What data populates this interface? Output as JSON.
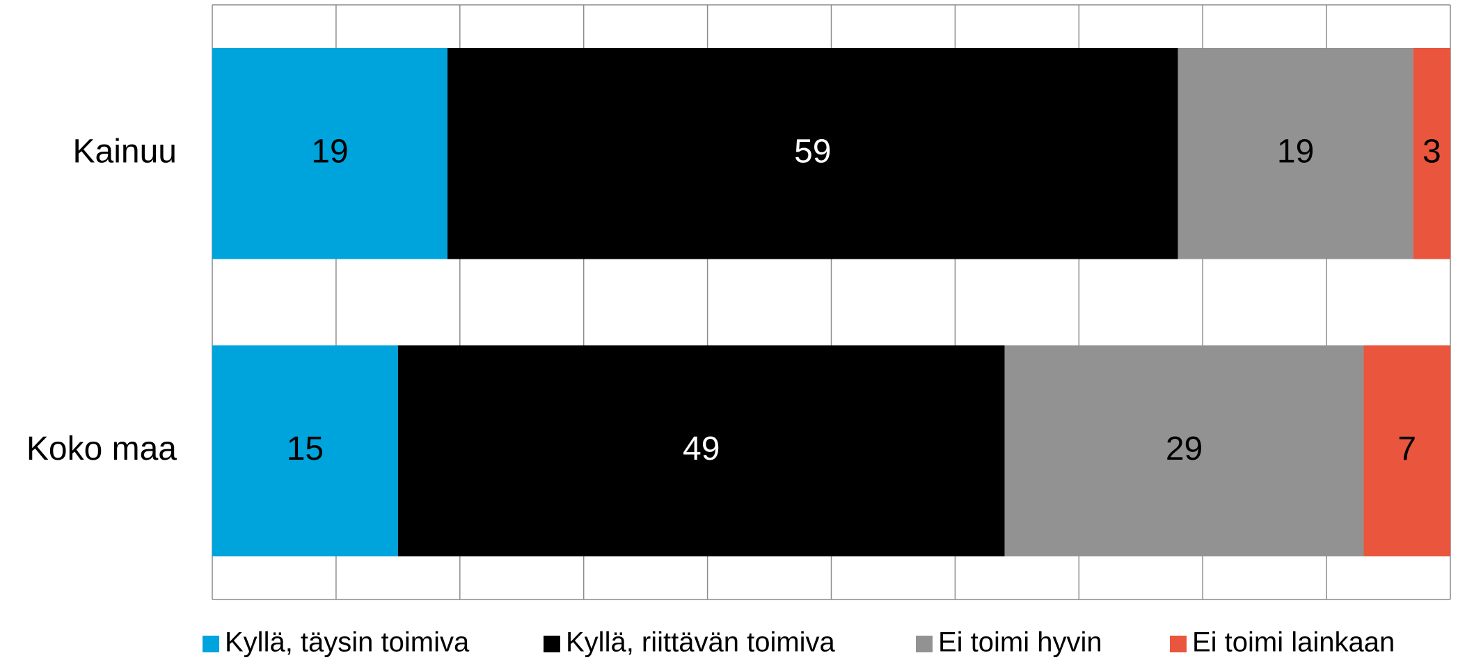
{
  "chart_data": {
    "type": "stacked-barh",
    "categories": [
      "Kainuu",
      "Koko maa"
    ],
    "series": [
      {
        "name": "Kyllä, täysin toimiva",
        "color": "#00a4dc",
        "values": [
          19,
          15
        ]
      },
      {
        "name": "Kyllä, riittävän toimiva",
        "color": "#000000",
        "values": [
          59,
          49
        ]
      },
      {
        "name": "Ei toimi hyvin",
        "color": "#929292",
        "values": [
          19,
          29
        ]
      },
      {
        "name": "Ei toimi lainkaan",
        "color": "#ea553d",
        "values": [
          3,
          7
        ]
      }
    ],
    "xlim": [
      0,
      100
    ],
    "xticks": [
      0,
      10,
      20,
      30,
      40,
      50,
      60,
      70,
      80,
      90,
      100
    ],
    "grid": true,
    "legend": "bottom"
  }
}
